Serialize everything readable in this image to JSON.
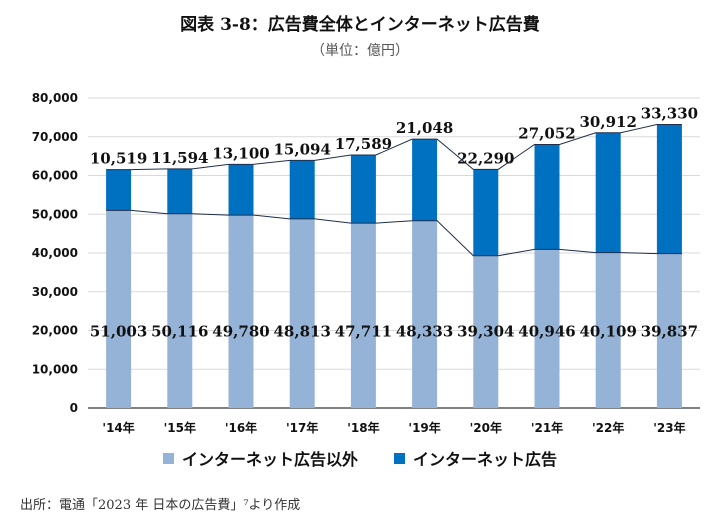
{
  "header": {
    "title": "図表 3-8：広告費全体とインターネット広告費",
    "unit": "（単位：億円）"
  },
  "footer": {
    "source": "出所：電通「2023 年 日本の広告費」⁷より作成"
  },
  "colors": {
    "non_internet": "#95B3D7",
    "internet": "#0070C0",
    "grid": "#D9D9D9",
    "axis": "#000000",
    "trend": "#1F2E4D"
  },
  "chart_data": {
    "type": "bar",
    "stacked": true,
    "title": "図表 3-8：広告費全体とインターネット広告費",
    "subtitle": "（単位：億円）",
    "categories": [
      "'14年",
      "'15年",
      "'16年",
      "'17年",
      "'18年",
      "'19年",
      "'20年",
      "'21年",
      "'22年",
      "'23年"
    ],
    "series": [
      {
        "name": "インターネット広告以外",
        "values": [
          51003,
          50116,
          49780,
          48813,
          47711,
          48333,
          39304,
          40946,
          40109,
          39837
        ]
      },
      {
        "name": "インターネット広告",
        "values": [
          10519,
          11594,
          13100,
          15094,
          17589,
          21048,
          22290,
          27052,
          30912,
          33330
        ]
      }
    ],
    "bottom_labels": [
      "51,003",
      "50,116",
      "49,780",
      "48,813",
      "47,711",
      "48,333",
      "39,304",
      "40,946",
      "40,109",
      "39,837"
    ],
    "top_labels": [
      "10,519",
      "11,594",
      "13,100",
      "15,094",
      "17,589",
      "21,048",
      "22,290",
      "27,052",
      "30,912",
      "33,330"
    ],
    "ylim": [
      0,
      80000
    ],
    "yticks": [
      0,
      10000,
      20000,
      30000,
      40000,
      50000,
      60000,
      70000,
      80000
    ],
    "ytick_labels": [
      "0",
      "10,000",
      "20,000",
      "30,000",
      "40,000",
      "50,000",
      "60,000",
      "70,000",
      "80,000"
    ],
    "grid": true,
    "legend": "bottom",
    "xlabel": "",
    "ylabel": ""
  }
}
